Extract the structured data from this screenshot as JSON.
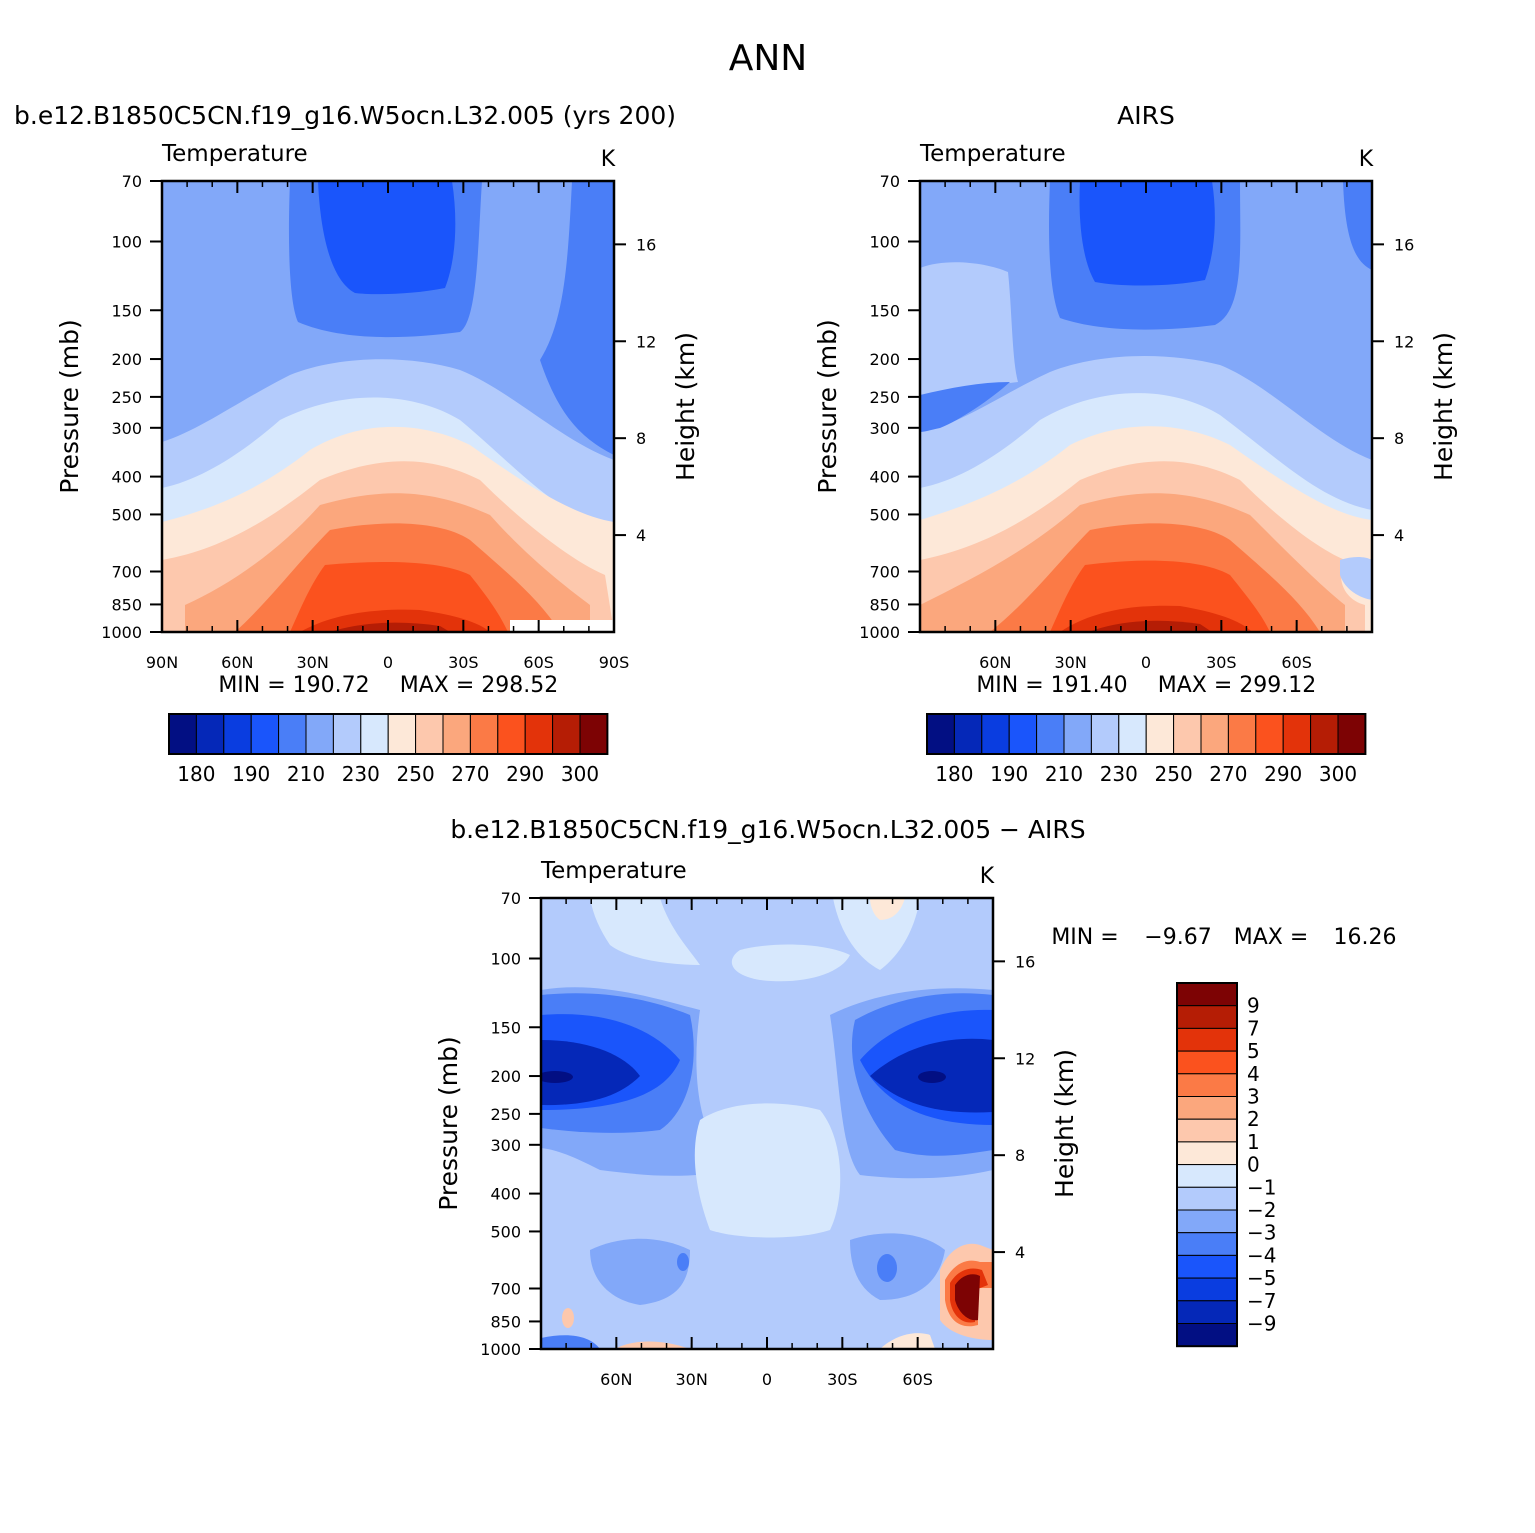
{
  "page": {
    "title": "ANN"
  },
  "chart_data": [
    {
      "id": "model",
      "type": "heatmap",
      "case_title": "b.e12.B1850C5CN.f19_g16.W5ocn.L32.005 (yrs 200)",
      "variable": "Temperature",
      "units": "K",
      "xlabel": "",
      "ylabel": "Pressure (mb)",
      "y2label": "Height (km)",
      "x_ticks": [
        "90N",
        "60N",
        "30N",
        "0",
        "30S",
        "60S",
        "90S"
      ],
      "x_tick_values": [
        90,
        60,
        30,
        0,
        -30,
        -60,
        -90
      ],
      "xlim": [
        90,
        -90
      ],
      "y_ticks": [
        "70",
        "100",
        "150",
        "200",
        "250",
        "300",
        "400",
        "500",
        "700",
        "850",
        "1000"
      ],
      "y_tick_values": [
        70,
        100,
        150,
        200,
        250,
        300,
        400,
        500,
        700,
        850,
        1000
      ],
      "ylim": [
        1000,
        70
      ],
      "y_scale": "log",
      "height_ticks": [
        "4",
        "8",
        "12",
        "16"
      ],
      "height_tick_values": [
        4,
        8,
        12,
        16
      ],
      "min_label": "MIN = 190.72",
      "max_label": "MAX = 298.52",
      "min": 190.72,
      "max": 298.52,
      "legend_placement": "bottom",
      "colorbar_labels": [
        "180",
        "190",
        "210",
        "230",
        "250",
        "270",
        "290",
        "300"
      ]
    },
    {
      "id": "obs",
      "type": "heatmap",
      "case_title": "AIRS",
      "variable": "Temperature",
      "units": "K",
      "xlabel": "",
      "ylabel": "Pressure (mb)",
      "y2label": "Height (km)",
      "x_ticks": [
        "60N",
        "30N",
        "0",
        "30S",
        "60S"
      ],
      "x_tick_values": [
        60,
        30,
        0,
        -30,
        -60
      ],
      "xlim": [
        90,
        -90
      ],
      "y_ticks": [
        "70",
        "100",
        "150",
        "200",
        "250",
        "300",
        "400",
        "500",
        "700",
        "850",
        "1000"
      ],
      "y_tick_values": [
        70,
        100,
        150,
        200,
        250,
        300,
        400,
        500,
        700,
        850,
        1000
      ],
      "ylim": [
        1000,
        70
      ],
      "y_scale": "log",
      "height_ticks": [
        "4",
        "8",
        "12",
        "16"
      ],
      "height_tick_values": [
        4,
        8,
        12,
        16
      ],
      "min_label": "MIN = 191.40",
      "max_label": "MAX = 299.12",
      "min": 191.4,
      "max": 299.12,
      "legend_placement": "bottom",
      "colorbar_labels": [
        "180",
        "190",
        "210",
        "230",
        "250",
        "270",
        "290",
        "300"
      ]
    },
    {
      "id": "diff",
      "type": "heatmap",
      "case_title": "b.e12.B1850C5CN.f19_g16.W5ocn.L32.005 − AIRS",
      "variable": "Temperature",
      "units": "K",
      "xlabel": "",
      "ylabel": "Pressure (mb)",
      "y2label": "Height (km)",
      "x_ticks": [
        "60N",
        "30N",
        "0",
        "30S",
        "60S"
      ],
      "x_tick_values": [
        60,
        30,
        0,
        -30,
        -60
      ],
      "xlim": [
        90,
        -90
      ],
      "y_ticks": [
        "70",
        "100",
        "150",
        "200",
        "250",
        "300",
        "400",
        "500",
        "700",
        "850",
        "1000"
      ],
      "y_tick_values": [
        70,
        100,
        150,
        200,
        250,
        300,
        400,
        500,
        700,
        850,
        1000
      ],
      "ylim": [
        1000,
        70
      ],
      "y_scale": "log",
      "height_ticks": [
        "4",
        "8",
        "12",
        "16"
      ],
      "height_tick_values": [
        4,
        8,
        12,
        16
      ],
      "min_label": "MIN =",
      "min_value": "−9.67",
      "max_label": "MAX =",
      "max_value": "16.26",
      "min": -9.67,
      "max": 16.26,
      "legend_placement": "right",
      "colorbar_labels": [
        "9",
        "7",
        "5",
        "4",
        "3",
        "2",
        "1",
        "0",
        "−1",
        "−2",
        "−3",
        "−4",
        "−5",
        "−7",
        "−9"
      ]
    }
  ],
  "colors": {
    "abs_palette": [
      "#020f83",
      "#0528b8",
      "#0a3de0",
      "#1a55fb",
      "#4a7ef7",
      "#82a8f9",
      "#b3cbfc",
      "#d7e8fd",
      "#fde8d8",
      "#fdc8ad",
      "#fba77d",
      "#fb7a46",
      "#fb521e",
      "#e3330a",
      "#b51d05",
      "#7d0304"
    ],
    "diff_palette": [
      "#7d0304",
      "#b51d05",
      "#e3330a",
      "#fb521e",
      "#fb7a46",
      "#fba77d",
      "#fdc8ad",
      "#fde8d8",
      "#d7e8fd",
      "#b3cbfc",
      "#82a8f9",
      "#4a7ef7",
      "#1a55fb",
      "#0a3de0",
      "#0528b8",
      "#020f83"
    ]
  }
}
